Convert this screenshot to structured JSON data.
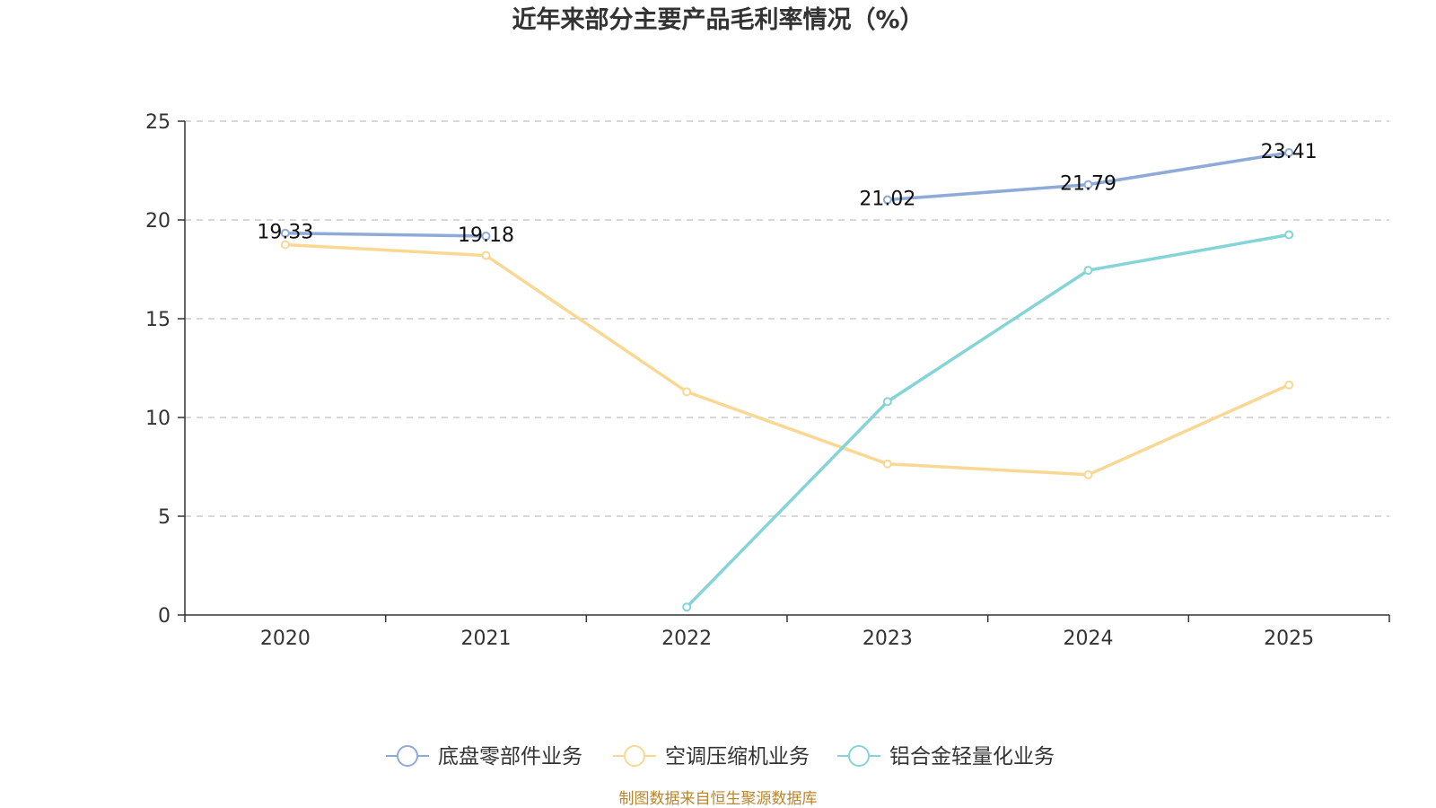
{
  "chart_data": {
    "type": "line",
    "title": "近年来部分主要产品毛利率情况（%）",
    "categories": [
      "2020",
      "2021",
      "2022",
      "2023",
      "2024",
      "2025"
    ],
    "ylim": [
      0,
      25
    ],
    "yticks": [
      0,
      5,
      10,
      15,
      20,
      25
    ],
    "grid": true,
    "legend_position": "bottom-center",
    "series": [
      {
        "name": "底盘零部件业务",
        "color": "#8eaad8",
        "values": [
          19.33,
          19.18,
          null,
          21.02,
          21.79,
          23.41
        ],
        "labels": [
          "19.33",
          "19.18",
          "",
          "21.02",
          "21.79",
          "23.41"
        ]
      },
      {
        "name": "空调压缩机业务",
        "color": "#f9d894",
        "values": [
          18.75,
          18.2,
          11.3,
          7.65,
          7.1,
          11.65
        ],
        "labels": [
          "",
          "",
          "",
          "",
          "",
          ""
        ]
      },
      {
        "name": "铝合金轻量化业务",
        "color": "#84d4d8",
        "values": [
          null,
          null,
          0.4,
          10.8,
          17.45,
          19.25
        ],
        "labels": [
          "",
          "",
          "",
          "",
          "",
          ""
        ]
      }
    ],
    "source": "制图数据来自恒生聚源数据库"
  }
}
